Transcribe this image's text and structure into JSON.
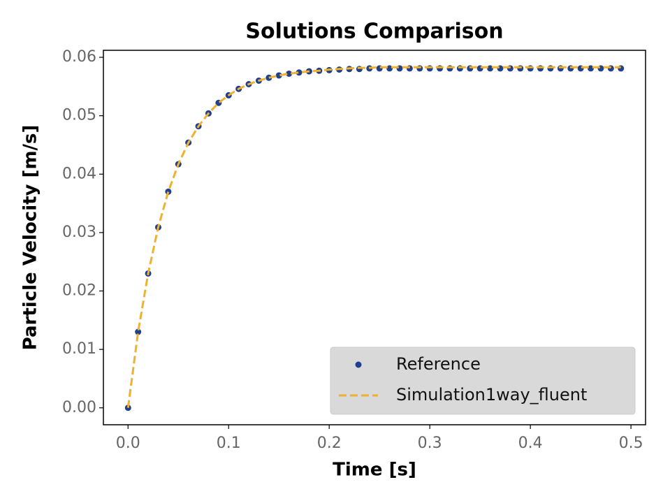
{
  "chart_data": {
    "type": "line",
    "title": "Solutions Comparison",
    "xlabel": "Time [s]",
    "ylabel": "Particle Velocity [m/s]",
    "x": [
      0,
      0.01,
      0.02,
      0.03,
      0.04,
      0.05,
      0.06,
      0.07,
      0.08,
      0.09,
      0.1,
      0.11,
      0.12,
      0.13,
      0.14,
      0.15,
      0.16,
      0.17,
      0.18,
      0.19,
      0.2,
      0.21,
      0.22,
      0.23,
      0.24,
      0.25,
      0.26,
      0.27,
      0.28,
      0.29,
      0.3,
      0.31,
      0.32,
      0.33,
      0.34,
      0.35,
      0.36,
      0.37,
      0.38,
      0.39,
      0.4,
      0.41,
      0.42,
      0.43,
      0.44,
      0.45,
      0.46,
      0.47,
      0.48,
      0.49
    ],
    "series": [
      {
        "name": "Reference",
        "style": "markers",
        "color": "#1f3f8f",
        "values": [
          0,
          0.013,
          0.023,
          0.0309,
          0.037,
          0.0417,
          0.0454,
          0.0482,
          0.0504,
          0.0522,
          0.0535,
          0.0546,
          0.0554,
          0.056,
          0.0565,
          0.0569,
          0.0572,
          0.0574,
          0.0576,
          0.0577,
          0.0578,
          0.0579,
          0.058,
          0.058,
          0.0581,
          0.0581,
          0.0581,
          0.0581,
          0.0581,
          0.0581,
          0.0581,
          0.0581,
          0.0581,
          0.0581,
          0.0581,
          0.0581,
          0.0581,
          0.0581,
          0.0581,
          0.0581,
          0.0581,
          0.0581,
          0.0581,
          0.0581,
          0.0581,
          0.0581,
          0.0581,
          0.0581,
          0.0581,
          0.0581
        ]
      },
      {
        "name": "Simulation1way_fluent",
        "style": "dashed",
        "color": "#f0b030",
        "values": [
          0,
          0.013,
          0.023,
          0.0309,
          0.037,
          0.0417,
          0.0454,
          0.0482,
          0.0504,
          0.0522,
          0.0535,
          0.0546,
          0.0554,
          0.056,
          0.0565,
          0.0569,
          0.0572,
          0.0574,
          0.0576,
          0.0577,
          0.0579,
          0.058,
          0.0581,
          0.0582,
          0.0582,
          0.0583,
          0.0583,
          0.0583,
          0.0583,
          0.0583,
          0.0583,
          0.0583,
          0.0583,
          0.0583,
          0.0583,
          0.0583,
          0.0583,
          0.0583,
          0.0583,
          0.0583,
          0.0583,
          0.0583,
          0.0583,
          0.0583,
          0.0583,
          0.0583,
          0.0583,
          0.0583,
          0.0583,
          0.0583
        ]
      }
    ],
    "xlim": [
      -0.0245,
      0.5145
    ],
    "xticks": [
      {
        "value": 0,
        "label": "0.0"
      },
      {
        "value": 0.1,
        "label": "0.1"
      },
      {
        "value": 0.2,
        "label": "0.2"
      },
      {
        "value": 0.3,
        "label": "0.3"
      },
      {
        "value": 0.4,
        "label": "0.4"
      },
      {
        "value": 0.5,
        "label": "0.5"
      }
    ],
    "ylim": [
      -0.0029,
      0.0612
    ],
    "yticks": [
      {
        "value": 0,
        "label": "0.00"
      },
      {
        "value": 0.01,
        "label": "0.01"
      },
      {
        "value": 0.02,
        "label": "0.02"
      },
      {
        "value": 0.03,
        "label": "0.03"
      },
      {
        "value": 0.04,
        "label": "0.04"
      },
      {
        "value": 0.05,
        "label": "0.05"
      },
      {
        "value": 0.06,
        "label": "0.06"
      }
    ],
    "legend": "lower right",
    "grid": false
  }
}
